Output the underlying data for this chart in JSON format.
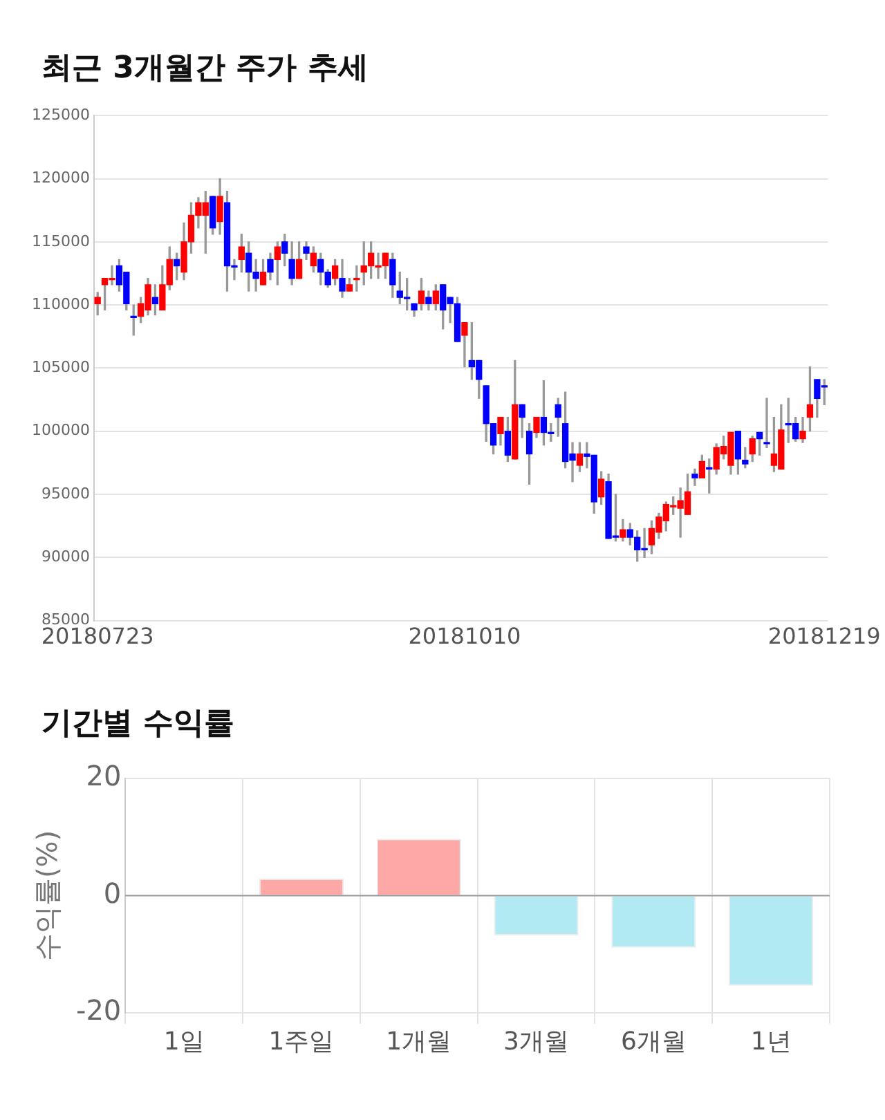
{
  "chart_data": [
    {
      "type": "candlestick",
      "title": "최근 3개월간 주가 추세",
      "categories": [
        "20180723",
        null,
        null,
        null,
        null,
        null,
        null,
        null,
        null,
        null,
        null,
        null,
        null,
        null,
        null,
        null,
        null,
        null,
        null,
        null,
        null,
        null,
        null,
        null,
        null,
        null,
        null,
        null,
        null,
        null,
        null,
        null,
        null,
        null,
        null,
        null,
        null,
        null,
        null,
        null,
        null,
        null,
        null,
        null,
        null,
        null,
        null,
        null,
        null,
        null,
        null,
        "20181010",
        null,
        null,
        null,
        null,
        null,
        null,
        null,
        null,
        null,
        null,
        null,
        null,
        null,
        null,
        null,
        null,
        null,
        null,
        null,
        null,
        null,
        null,
        null,
        null,
        null,
        null,
        null,
        null,
        null,
        null,
        null,
        null,
        null,
        null,
        null,
        null,
        null,
        null,
        null,
        null,
        null,
        null,
        null,
        null,
        null,
        null,
        null,
        null,
        null,
        "20181219"
      ],
      "ohlc": [
        [
          110100,
          111000,
          109200,
          110600
        ],
        [
          111600,
          112100,
          109600,
          112100
        ],
        [
          112000,
          113100,
          111600,
          112100
        ],
        [
          113100,
          113600,
          111100,
          111600
        ],
        [
          112600,
          112600,
          109600,
          110100
        ],
        [
          109100,
          110000,
          107600,
          109000
        ],
        [
          109100,
          110600,
          108600,
          110100
        ],
        [
          109600,
          112100,
          109200,
          111600
        ],
        [
          110600,
          111600,
          109200,
          110100
        ],
        [
          109600,
          113100,
          109600,
          111600
        ],
        [
          111600,
          114600,
          111200,
          113600
        ],
        [
          113600,
          114100,
          112000,
          113100
        ],
        [
          112600,
          116500,
          112000,
          115000
        ],
        [
          115000,
          118100,
          114100,
          117100
        ],
        [
          117100,
          118500,
          116100,
          118100
        ],
        [
          117100,
          119000,
          114100,
          118100
        ],
        [
          118600,
          118600,
          115600,
          116100
        ],
        [
          116600,
          120000,
          115600,
          118600
        ],
        [
          118100,
          119000,
          111100,
          113100
        ],
        [
          113100,
          113600,
          112000,
          113000
        ],
        [
          113600,
          115600,
          112600,
          114600
        ],
        [
          114100,
          115000,
          111100,
          112600
        ],
        [
          112600,
          113600,
          111100,
          112100
        ],
        [
          111600,
          113600,
          111600,
          112600
        ],
        [
          113600,
          114100,
          112000,
          112600
        ],
        [
          113600,
          115000,
          111600,
          114600
        ],
        [
          115000,
          115600,
          113100,
          114100
        ],
        [
          113600,
          115000,
          111600,
          112100
        ],
        [
          112100,
          115000,
          112100,
          113600
        ],
        [
          114600,
          115000,
          113600,
          114100
        ],
        [
          113100,
          114600,
          112600,
          114100
        ],
        [
          113600,
          114100,
          111600,
          112600
        ],
        [
          112600,
          112800,
          111400,
          111600
        ],
        [
          112100,
          113600,
          111600,
          113100
        ],
        [
          112100,
          113600,
          110600,
          111100
        ],
        [
          111100,
          112100,
          111100,
          111600
        ],
        [
          112000,
          113100,
          111100,
          112100
        ],
        [
          112600,
          115000,
          111600,
          113100
        ],
        [
          113100,
          115000,
          112100,
          114100
        ],
        [
          113000,
          114100,
          112100,
          113100
        ],
        [
          113100,
          114100,
          112100,
          114100
        ],
        [
          113600,
          114100,
          110600,
          111600
        ],
        [
          111100,
          112600,
          110100,
          110600
        ],
        [
          110600,
          112100,
          109600,
          110500
        ],
        [
          110100,
          110100,
          109100,
          109600
        ],
        [
          110100,
          112100,
          109600,
          111100
        ],
        [
          110600,
          111100,
          109600,
          110100
        ],
        [
          110100,
          111600,
          109600,
          111100
        ],
        [
          111600,
          111600,
          108100,
          109600
        ],
        [
          110600,
          110600,
          108600,
          110100
        ],
        [
          110100,
          110600,
          107100,
          107100
        ],
        [
          107600,
          108600,
          105100,
          108600
        ],
        [
          105600,
          108600,
          104100,
          105100
        ],
        [
          105600,
          105600,
          102600,
          104100
        ],
        [
          103600,
          103600,
          99200,
          100600
        ],
        [
          100600,
          100600,
          98200,
          98900
        ],
        [
          99800,
          101100,
          98900,
          101100
        ],
        [
          100000,
          101100,
          97600,
          98100
        ],
        [
          97800,
          105600,
          97800,
          102100
        ],
        [
          102100,
          102100,
          99500,
          101100
        ],
        [
          100000,
          100600,
          95800,
          98200
        ],
        [
          99900,
          101100,
          99500,
          101100
        ],
        [
          101100,
          104000,
          98900,
          99900
        ],
        [
          99900,
          100600,
          99200,
          99800
        ],
        [
          102100,
          102600,
          99600,
          101100
        ],
        [
          100600,
          103100,
          97100,
          97600
        ],
        [
          98200,
          99100,
          96000,
          97700
        ],
        [
          97300,
          99100,
          96800,
          98200
        ],
        [
          98200,
          99100,
          97100,
          98000
        ],
        [
          98100,
          98100,
          93500,
          94400
        ],
        [
          94800,
          96800,
          94200,
          96200
        ],
        [
          96000,
          96600,
          91500,
          91500
        ],
        [
          91700,
          95000,
          91300,
          91600
        ],
        [
          91600,
          93000,
          91300,
          92200
        ],
        [
          92200,
          92700,
          91000,
          91600
        ],
        [
          91600,
          92100,
          89700,
          90600
        ],
        [
          90700,
          92300,
          90000,
          90600
        ],
        [
          91000,
          92900,
          90300,
          92300
        ],
        [
          92000,
          93500,
          91500,
          93200
        ],
        [
          92900,
          94400,
          92100,
          94200
        ],
        [
          94000,
          94800,
          93400,
          94100
        ],
        [
          93900,
          95500,
          91600,
          94500
        ],
        [
          93400,
          96600,
          93400,
          95200
        ],
        [
          96600,
          97000,
          95700,
          96300
        ],
        [
          96300,
          98100,
          96300,
          97600
        ],
        [
          97100,
          97800,
          95100,
          97000
        ],
        [
          97000,
          99000,
          96600,
          98700
        ],
        [
          98200,
          99600,
          97800,
          98800
        ],
        [
          97300,
          99900,
          96600,
          99900
        ],
        [
          100000,
          100000,
          96600,
          97800
        ],
        [
          97700,
          98700,
          97100,
          97400
        ],
        [
          98200,
          99600,
          97600,
          99400
        ],
        [
          99900,
          99900,
          98100,
          99400
        ],
        [
          99100,
          102600,
          98700,
          99000
        ],
        [
          97300,
          101100,
          96800,
          98200
        ],
        [
          97000,
          102100,
          97000,
          100100
        ],
        [
          100600,
          102600,
          99100,
          100500
        ],
        [
          100600,
          101100,
          99200,
          99400
        ],
        [
          99400,
          101100,
          99100,
          100000
        ],
        [
          101100,
          105100,
          100000,
          102100
        ],
        [
          104100,
          104100,
          101100,
          102600
        ],
        [
          103600,
          104100,
          102100,
          103500
        ]
      ],
      "ylim": [
        85000,
        125000
      ],
      "yticks": [
        85000,
        90000,
        95000,
        100000,
        105000,
        110000,
        115000,
        120000,
        125000
      ],
      "grid": "y"
    },
    {
      "type": "bar",
      "title": "기간별 수익률",
      "ylabel": "수익률(%)",
      "categories": [
        "1일",
        "1주일",
        "1개월",
        "3개월",
        "6개월",
        "1년"
      ],
      "values": [
        0,
        2.9,
        9.7,
        -6.8,
        -8.9,
        -15.4
      ],
      "colors": [
        "#ffa8a8",
        "#ffa8a8",
        "#ffa8a8",
        "#b2eaf4",
        "#b2eaf4",
        "#b2eaf4"
      ],
      "ylim": [
        -20,
        20
      ],
      "yticks": [
        -20,
        0,
        20
      ],
      "grid": true
    }
  ]
}
